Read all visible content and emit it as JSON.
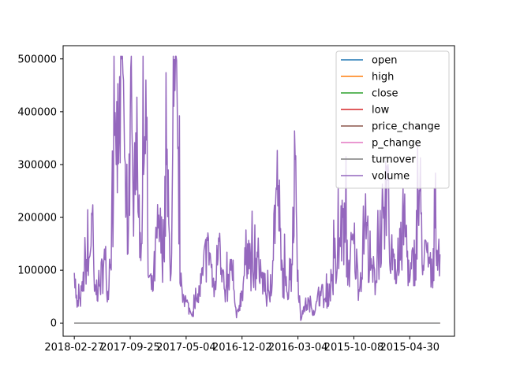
{
  "chart_data": {
    "type": "line",
    "title": "",
    "xlabel": "",
    "ylabel": "",
    "ylim": [
      -25000,
      525000
    ],
    "yticks": [
      0,
      100000,
      200000,
      300000,
      400000,
      500000
    ],
    "ytick_labels": [
      "0",
      "100000",
      "200000",
      "300000",
      "400000",
      "500000"
    ],
    "xticks": [
      0,
      100,
      200,
      300,
      400,
      500,
      600
    ],
    "xtick_labels": [
      "2018-02-27",
      "2017-09-25",
      "2017-05-04",
      "2016-12-02",
      "2016-03-04",
      "2015-10-08",
      "2015-04-30"
    ],
    "x_range": [
      -20,
      680
    ],
    "n_points": 655,
    "legend_position": "upper right",
    "colors": {
      "open": "#1f77b4",
      "high": "#ff7f0e",
      "close": "#2ca02c",
      "low": "#d62728",
      "volume": "#9467bd",
      "price_change": "#8c564b",
      "p_change": "#e377c2",
      "turnover": "#7f7f7f"
    },
    "series": [
      {
        "name": "open",
        "approx_value": 0
      },
      {
        "name": "high",
        "approx_value": 0
      },
      {
        "name": "close",
        "approx_value": 0
      },
      {
        "name": "low",
        "approx_value": 0
      },
      {
        "name": "price_change",
        "approx_value": 0
      },
      {
        "name": "p_change",
        "approx_value": 0
      },
      {
        "name": "turnover",
        "approx_value": 0
      },
      {
        "name": "volume",
        "approx_profile": [
          [
            0,
            95000
          ],
          [
            5,
            30000
          ],
          [
            10,
            45000
          ],
          [
            15,
            60000
          ],
          [
            20,
            130000
          ],
          [
            25,
            90000
          ],
          [
            32,
            205000
          ],
          [
            36,
            60000
          ],
          [
            45,
            70000
          ],
          [
            55,
            120000
          ],
          [
            60,
            60000
          ],
          [
            70,
            240000
          ],
          [
            75,
            300000
          ],
          [
            80,
            360000
          ],
          [
            85,
            500000
          ],
          [
            88,
            460000
          ],
          [
            92,
            200000
          ],
          [
            95,
            130000
          ],
          [
            100,
            380000
          ],
          [
            105,
            240000
          ],
          [
            110,
            360000
          ],
          [
            115,
            200000
          ],
          [
            120,
            150000
          ],
          [
            128,
            460000
          ],
          [
            132,
            90000
          ],
          [
            140,
            60000
          ],
          [
            150,
            180000
          ],
          [
            160,
            130000
          ],
          [
            165,
            300000
          ],
          [
            172,
            80000
          ],
          [
            180,
            440000
          ],
          [
            185,
            330000
          ],
          [
            190,
            70000
          ],
          [
            200,
            40000
          ],
          [
            210,
            15000
          ],
          [
            220,
            40000
          ],
          [
            230,
            90000
          ],
          [
            240,
            160000
          ],
          [
            250,
            50000
          ],
          [
            260,
            170000
          ],
          [
            270,
            40000
          ],
          [
            280,
            100000
          ],
          [
            290,
            10000
          ],
          [
            300,
            60000
          ],
          [
            310,
            150000
          ],
          [
            320,
            80000
          ],
          [
            330,
            120000
          ],
          [
            340,
            60000
          ],
          [
            350,
            40000
          ],
          [
            360,
            230000
          ],
          [
            365,
            260000
          ],
          [
            370,
            100000
          ],
          [
            380,
            60000
          ],
          [
            390,
            110000
          ],
          [
            395,
            310000
          ],
          [
            400,
            100000
          ],
          [
            405,
            5000
          ],
          [
            410,
            30000
          ],
          [
            420,
            40000
          ],
          [
            430,
            20000
          ],
          [
            440,
            60000
          ],
          [
            450,
            40000
          ],
          [
            460,
            80000
          ],
          [
            470,
            100000
          ],
          [
            480,
            200000
          ],
          [
            490,
            100000
          ],
          [
            500,
            150000
          ],
          [
            510,
            60000
          ],
          [
            520,
            200000
          ],
          [
            530,
            100000
          ],
          [
            540,
            80000
          ],
          [
            550,
            200000
          ],
          [
            555,
            140000
          ],
          [
            560,
            270000
          ],
          [
            565,
            100000
          ],
          [
            570,
            140000
          ],
          [
            580,
            90000
          ],
          [
            590,
            200000
          ],
          [
            600,
            80000
          ],
          [
            610,
            130000
          ],
          [
            618,
            250000
          ],
          [
            625,
            100000
          ],
          [
            630,
            140000
          ],
          [
            640,
            80000
          ],
          [
            645,
            180000
          ],
          [
            650,
            100000
          ],
          [
            654,
            130000
          ]
        ]
      }
    ]
  }
}
